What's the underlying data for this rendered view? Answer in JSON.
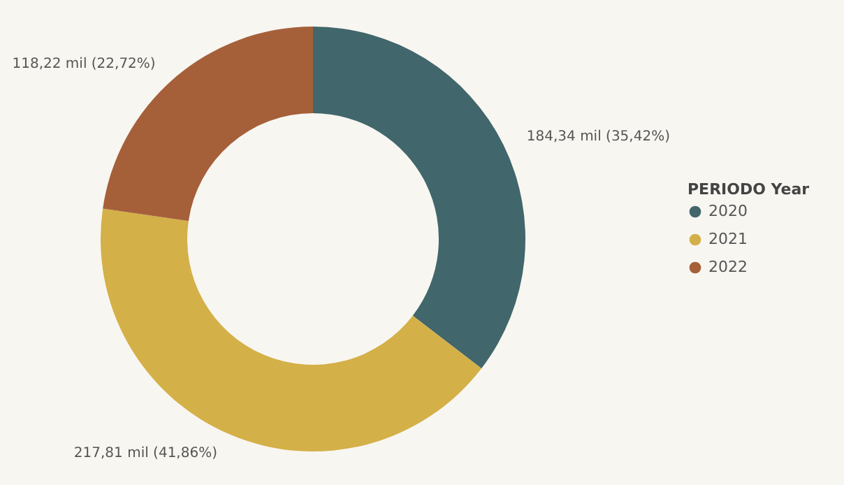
{
  "chart_data": {
    "type": "donut",
    "legend_title": "PERIODO Year",
    "legend": "right",
    "categories": [
      "2020",
      "2021",
      "2022"
    ],
    "values": [
      184.34,
      217.81,
      118.22
    ],
    "colors": [
      "#41666b",
      "#d4b048",
      "#a5603a"
    ],
    "value_labels": [
      "184,34 mil (35,42%)",
      "217,81 mil (41,86%)",
      "118,22 mil (22,72%)"
    ]
  }
}
